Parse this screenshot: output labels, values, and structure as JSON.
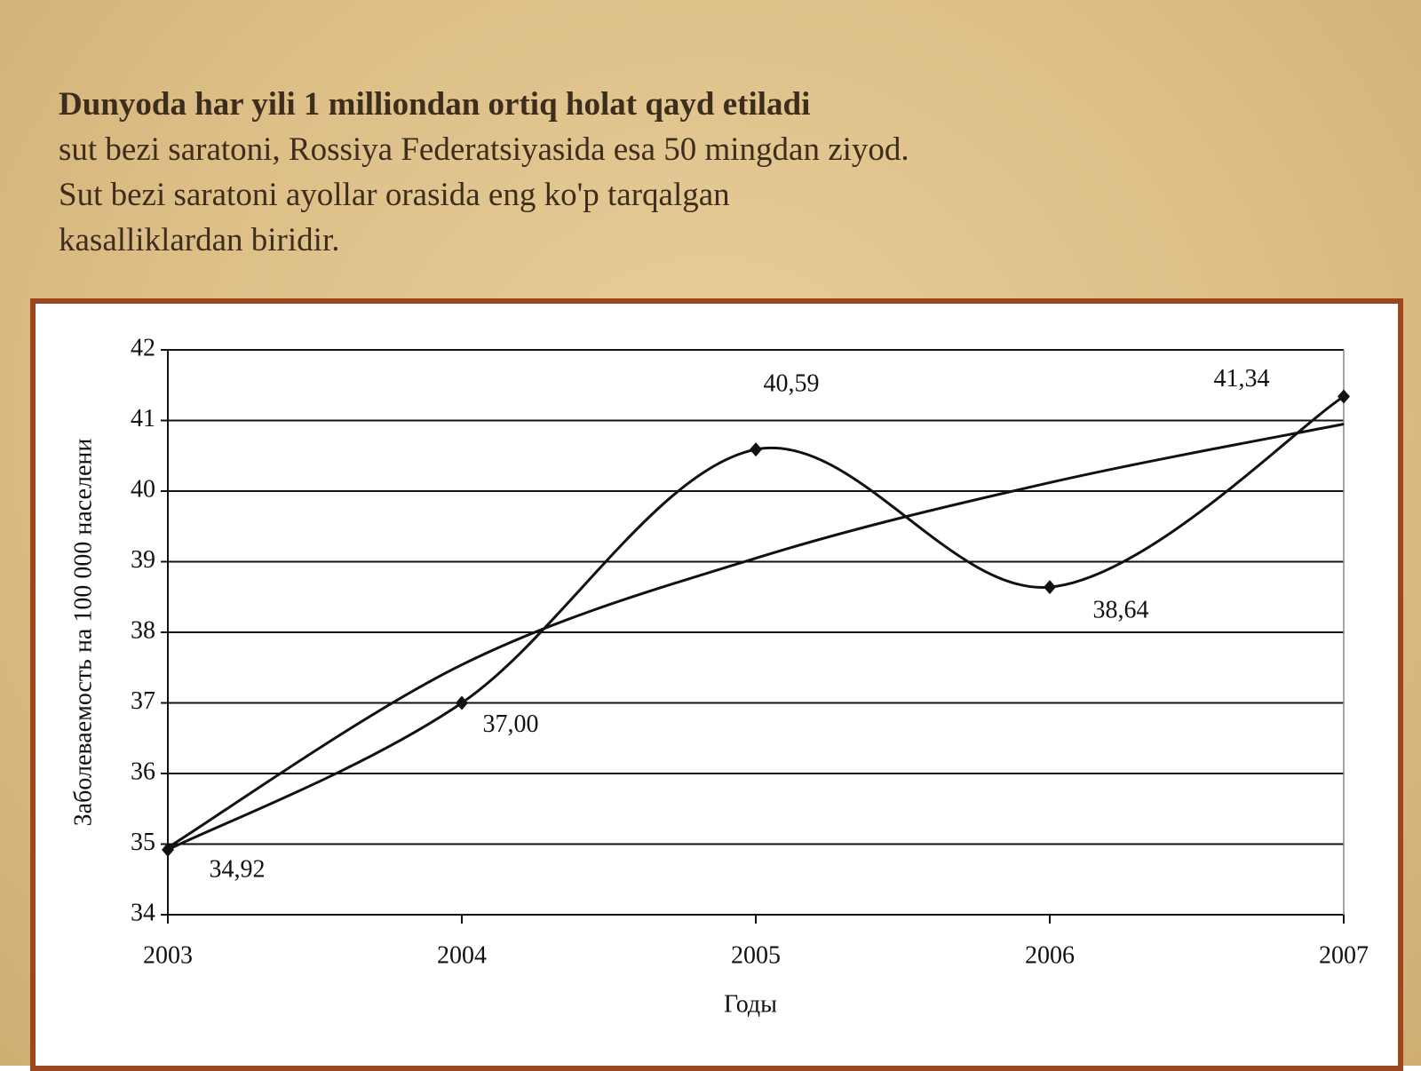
{
  "slide": {
    "title": "Dunyoda har yili 1 milliondan ortiq holat qayd etiladi",
    "lines": [
      "sut bezi saratoni, Rossiya Federatsiyasida esa 50 mingdan ziyod.",
      "Sut bezi saratoni ayollar orasida eng ko'p tarqalgan",
      "kasalliklardan biridir."
    ]
  },
  "chart_data": {
    "type": "line",
    "x_label": "Годы",
    "y_label": "Заболеваемость на 100 000 населени",
    "x": [
      2003,
      2004,
      2005,
      2006,
      2007
    ],
    "xlim": [
      2003,
      2007
    ],
    "xticks": [
      2003,
      2004,
      2005,
      2006,
      2007
    ],
    "ylim": [
      34,
      42
    ],
    "yticks": [
      34,
      35,
      36,
      37,
      38,
      39,
      40,
      41,
      42
    ],
    "grid": true,
    "series": [
      {
        "color": "#111111",
        "values": [
          34.92,
          37.0,
          40.59,
          38.64,
          41.34
        ],
        "value_labels": [
          "34,92",
          "37,00",
          "40,59",
          "38,64",
          "41,34"
        ],
        "markers": true
      },
      {
        "color": "#111111",
        "values": [
          34.95,
          37.54,
          39.05,
          40.12,
          40.95
        ],
        "markers": false
      }
    ]
  }
}
